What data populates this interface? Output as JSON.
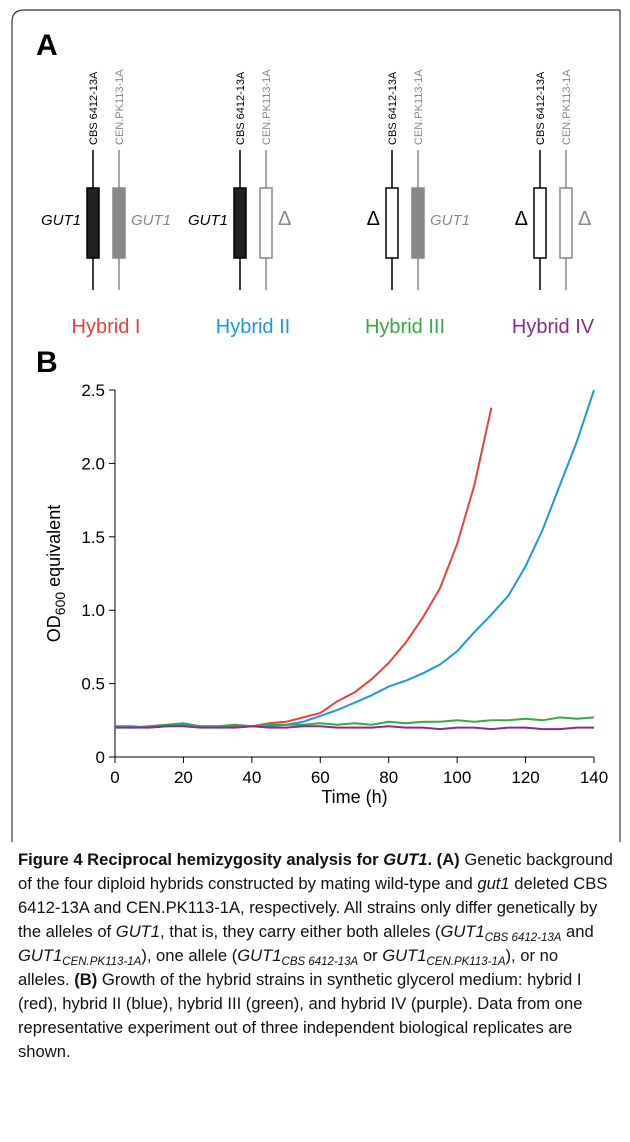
{
  "panel_a": {
    "label": "A",
    "hybrids": [
      {
        "name": "Hybrid I",
        "color": "#e8403a",
        "strain_left": "CBS 6412-13A",
        "strain_right": "CEN.PK113-1A",
        "left_label": "GUT1",
        "right_label": "GUT1",
        "left_fill": "#222222",
        "right_fill": "#888888"
      },
      {
        "name": "Hybrid II",
        "color": "#1a9ad6",
        "strain_left": "CBS 6412-13A",
        "strain_right": "CEN.PK113-1A",
        "left_label": "GUT1",
        "right_label": "Δ",
        "left_fill": "#222222",
        "right_fill": "#ffffff"
      },
      {
        "name": "Hybrid III",
        "color": "#3aa64a",
        "strain_left": "CBS 6412-13A",
        "strain_right": "CEN.PK113-1A",
        "left_label": "Δ",
        "right_label": "GUT1",
        "left_fill": "#ffffff",
        "right_fill": "#888888"
      },
      {
        "name": "Hybrid IV",
        "color": "#8c2a8a",
        "strain_left": "CBS 6412-13A",
        "strain_right": "CEN.PK113-1A",
        "left_label": "Δ",
        "right_label": "Δ",
        "left_fill": "#ffffff",
        "right_fill": "#ffffff"
      }
    ]
  },
  "chart_data": {
    "type": "line",
    "panel_label": "B",
    "x_label": "Time (h)",
    "y_label": {
      "main": "OD",
      "sub": "600",
      "rest": " equivalent"
    },
    "x": [
      0,
      5,
      10,
      15,
      20,
      25,
      30,
      35,
      40,
      45,
      50,
      55,
      60,
      65,
      70,
      75,
      80,
      85,
      90,
      95,
      100,
      105,
      110,
      115,
      120,
      125,
      130,
      135,
      140
    ],
    "series": [
      {
        "name": "Hybrid I",
        "color": "#e8403a",
        "values": [
          0.21,
          0.2,
          0.21,
          0.21,
          0.22,
          0.21,
          0.2,
          0.21,
          0.21,
          0.23,
          0.24,
          0.27,
          0.3,
          0.38,
          0.44,
          0.53,
          0.64,
          0.78,
          0.95,
          1.15,
          1.45,
          1.85,
          2.38,
          null,
          null,
          null,
          null,
          null,
          null
        ]
      },
      {
        "name": "Hybrid II",
        "color": "#1a9ad6",
        "values": [
          0.21,
          0.21,
          0.2,
          0.21,
          0.22,
          0.21,
          0.21,
          0.2,
          0.21,
          0.21,
          0.22,
          0.24,
          0.28,
          0.32,
          0.37,
          0.42,
          0.48,
          0.52,
          0.57,
          0.63,
          0.72,
          0.85,
          0.97,
          1.1,
          1.3,
          1.55,
          1.85,
          2.15,
          2.5
        ]
      },
      {
        "name": "Hybrid III",
        "color": "#3aa64a",
        "values": [
          0.21,
          0.2,
          0.21,
          0.22,
          0.23,
          0.21,
          0.21,
          0.22,
          0.21,
          0.22,
          0.22,
          0.22,
          0.23,
          0.22,
          0.23,
          0.22,
          0.24,
          0.23,
          0.24,
          0.24,
          0.25,
          0.24,
          0.25,
          0.25,
          0.26,
          0.25,
          0.27,
          0.26,
          0.27
        ]
      },
      {
        "name": "Hybrid IV",
        "color": "#8c2a8a",
        "values": [
          0.2,
          0.2,
          0.2,
          0.21,
          0.21,
          0.2,
          0.2,
          0.2,
          0.21,
          0.2,
          0.2,
          0.21,
          0.21,
          0.2,
          0.2,
          0.2,
          0.21,
          0.2,
          0.2,
          0.19,
          0.2,
          0.2,
          0.19,
          0.2,
          0.2,
          0.19,
          0.19,
          0.2,
          0.2
        ]
      }
    ],
    "xlim": [
      0,
      140
    ],
    "xticks": [
      0,
      20,
      40,
      60,
      80,
      100,
      120,
      140
    ],
    "ylim": [
      0,
      2.5
    ],
    "yticks": [
      0,
      0.5,
      {
        "value": 1,
        "label": "1.0"
      },
      1.5,
      {
        "value": 2,
        "label": "2.0"
      },
      2.5
    ]
  },
  "caption": [
    {
      "text": "Figure 4 Reciprocal hemizygosity analysis for ",
      "style": "b"
    },
    {
      "text": "GUT1",
      "style": "bi"
    },
    {
      "text": ". (A)",
      "style": "b"
    },
    {
      "text": " Genetic background of the four diploid hybrids constructed by mating wild-type and ",
      "style": "n"
    },
    {
      "text": "gut1",
      "style": "i"
    },
    {
      "text": " deleted CBS 6412-13A and CEN.PK113-1A, respectively. All strains only differ genetically by the alleles of ",
      "style": "n"
    },
    {
      "text": "GUT1",
      "style": "i"
    },
    {
      "text": ", that is, they carry either both alleles (",
      "style": "n"
    },
    {
      "text": "GUT1",
      "style": "i"
    },
    {
      "text": "CBS 6412-13A",
      "style": "isub"
    },
    {
      "text": " and ",
      "style": "n"
    },
    {
      "text": "GUT1",
      "style": "i"
    },
    {
      "text": "CEN.PK113-1A",
      "style": "isub"
    },
    {
      "text": "), one allele (",
      "style": "n"
    },
    {
      "text": "GUT1",
      "style": "i"
    },
    {
      "text": "CBS 6412-13A",
      "style": "isub"
    },
    {
      "text": " or ",
      "style": "n"
    },
    {
      "text": "GUT1",
      "style": "i"
    },
    {
      "text": "CEN.PK113-1A",
      "style": "isub"
    },
    {
      "text": "), or no alleles. ",
      "style": "n"
    },
    {
      "text": "(B)",
      "style": "b"
    },
    {
      "text": " Growth of the hybrid strains in synthetic glycerol medium: hybrid I (red), hybrid II (blue), hybrid III (green), and hybrid IV (purple). Data from one representative experiment out of three independent biological replicates are shown.",
      "style": "n"
    }
  ]
}
